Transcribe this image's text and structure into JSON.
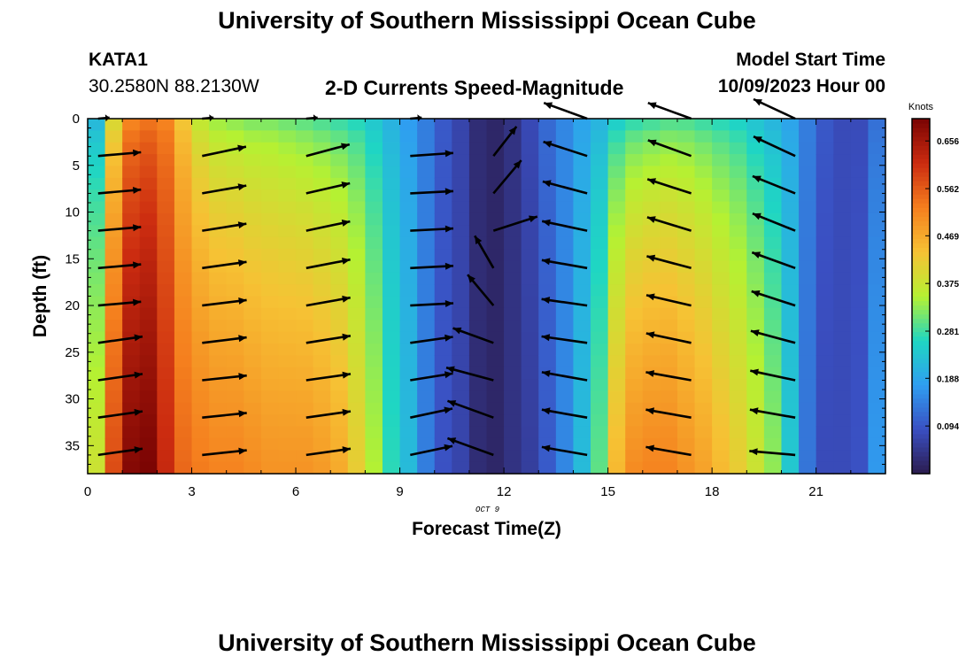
{
  "header": {
    "title": "University of Southern Mississippi Ocean Cube",
    "station": "KATA1",
    "coords": "30.2580N  88.2130W",
    "subtitle": "2-D Currents Speed-Magnitude",
    "model_label": "Model Start Time",
    "model_time": "10/09/2023 Hour 00"
  },
  "footer": {
    "title": "University of Southern Mississippi Ocean Cube"
  },
  "colors": {
    "scale": [
      "#2b1b4d",
      "#3a4fc2",
      "#2f9ef0",
      "#1fd6c3",
      "#b5f132",
      "#f6c234",
      "#f57f1e",
      "#cc2c10",
      "#7a0403"
    ],
    "arrow": "#000000"
  },
  "chart_data": {
    "type": "heatmap",
    "xlabel": "Forecast Time(Z)",
    "ylabel": "Depth (ft)",
    "date_label": "OCT 9",
    "colorbar_label": "Knots",
    "xlim": [
      0,
      23
    ],
    "ylim": [
      38,
      0
    ],
    "x_ticks": [
      0,
      3,
      6,
      9,
      12,
      15,
      18,
      21
    ],
    "y_ticks": [
      0,
      5,
      10,
      15,
      20,
      25,
      30,
      35
    ],
    "colorbar_range": [
      0,
      0.7
    ],
    "colorbar_ticks": [
      0.656,
      0.562,
      0.469,
      0.375,
      0.281,
      0.188,
      0.094
    ],
    "colorbar_tick_labels": [
      "0.656",
      "0.562",
      "0.469",
      "0.375",
      "0.281",
      "0.188",
      "0.094"
    ],
    "hours": [
      0.25,
      0.75,
      1.25,
      1.75,
      2.25,
      2.75,
      3.25,
      3.75,
      4.25,
      4.75,
      5.25,
      5.75,
      6.25,
      6.75,
      7.25,
      7.75,
      8.25,
      8.75,
      9.25,
      9.75,
      10.25,
      10.75,
      11.25,
      11.75,
      12.25,
      12.75,
      13.25,
      13.75,
      14.25,
      14.75,
      15.25,
      15.75,
      16.25,
      16.75,
      17.25,
      17.75,
      18.25,
      18.75,
      19.25,
      19.75,
      20.25,
      20.75,
      21.25,
      21.75,
      22.25,
      22.75
    ],
    "surface_speed": [
      0.2,
      0.38,
      0.5,
      0.52,
      0.51,
      0.42,
      0.35,
      0.32,
      0.31,
      0.3,
      0.3,
      0.29,
      0.28,
      0.27,
      0.26,
      0.25,
      0.23,
      0.2,
      0.17,
      0.14,
      0.1,
      0.07,
      0.03,
      0.02,
      0.04,
      0.08,
      0.12,
      0.15,
      0.18,
      0.2,
      0.23,
      0.25,
      0.26,
      0.27,
      0.27,
      0.26,
      0.25,
      0.24,
      0.22,
      0.2,
      0.18,
      0.14,
      0.1,
      0.08,
      0.08,
      0.12
    ],
    "bottom_speed": [
      0.38,
      0.58,
      0.69,
      0.7,
      0.62,
      0.55,
      0.53,
      0.52,
      0.52,
      0.51,
      0.5,
      0.5,
      0.5,
      0.49,
      0.47,
      0.42,
      0.35,
      0.27,
      0.22,
      0.14,
      0.09,
      0.07,
      0.03,
      0.02,
      0.04,
      0.06,
      0.1,
      0.15,
      0.22,
      0.3,
      0.45,
      0.51,
      0.52,
      0.52,
      0.5,
      0.48,
      0.45,
      0.42,
      0.38,
      0.33,
      0.24,
      0.13,
      0.08,
      0.08,
      0.09,
      0.17
    ],
    "vectors": {
      "columns": [
        {
          "hour": 0.3,
          "depths": [
            0,
            4,
            8,
            12,
            16,
            20,
            24,
            28,
            32,
            36
          ],
          "angle_deg": [
            5,
            5,
            5,
            5,
            5,
            5,
            8,
            8,
            8,
            8
          ],
          "length": [
            0.2,
            0.75,
            0.75,
            0.75,
            0.75,
            0.75,
            0.78,
            0.78,
            0.78,
            0.78
          ]
        },
        {
          "hour": 3.3,
          "depths": [
            0,
            4,
            8,
            12,
            16,
            20,
            24,
            28,
            32,
            36
          ],
          "angle_deg": [
            5,
            12,
            10,
            9,
            8,
            7,
            7,
            6,
            6,
            6
          ],
          "length": [
            0.2,
            0.78,
            0.78,
            0.78,
            0.78,
            0.78,
            0.78,
            0.78,
            0.78,
            0.78
          ]
        },
        {
          "hour": 6.3,
          "depths": [
            0,
            4,
            8,
            12,
            16,
            20,
            24,
            28,
            32,
            36
          ],
          "angle_deg": [
            5,
            15,
            13,
            12,
            11,
            10,
            9,
            8,
            8,
            8
          ],
          "length": [
            0.2,
            0.78,
            0.78,
            0.78,
            0.78,
            0.78,
            0.78,
            0.78,
            0.78,
            0.78
          ]
        },
        {
          "hour": 9.3,
          "depths": [
            0,
            4,
            8,
            12,
            16,
            20,
            24,
            28,
            32,
            36
          ],
          "angle_deg": [
            5,
            4,
            3,
            3,
            3,
            3,
            8,
            9,
            12,
            12
          ],
          "length": [
            0.2,
            0.75,
            0.75,
            0.75,
            0.75,
            0.75,
            0.75,
            0.75,
            0.75,
            0.75
          ]
        },
        {
          "hour": 11.7,
          "depths": [
            4,
            8,
            12,
            16,
            20,
            24,
            28,
            32,
            36
          ],
          "angle_deg": [
            52,
            50,
            18,
            120,
            130,
            160,
            165,
            160,
            160
          ],
          "length": [
            0.65,
            0.75,
            0.8,
            0.65,
            0.7,
            0.75,
            0.85,
            0.85,
            0.85
          ]
        },
        {
          "hour": 14.4,
          "depths": [
            0,
            4,
            8,
            12,
            16,
            20,
            24,
            28,
            32,
            36
          ],
          "angle_deg": [
            160,
            162,
            165,
            168,
            170,
            172,
            172,
            170,
            170,
            170
          ],
          "length": [
            0.8,
            0.8,
            0.8,
            0.8,
            0.8,
            0.8,
            0.8,
            0.8,
            0.8,
            0.8
          ]
        },
        {
          "hour": 17.4,
          "depths": [
            0,
            4,
            8,
            12,
            16,
            20,
            24,
            28,
            32,
            36
          ],
          "angle_deg": [
            160,
            160,
            162,
            163,
            165,
            167,
            168,
            170,
            170,
            170
          ],
          "length": [
            0.8,
            0.8,
            0.8,
            0.8,
            0.8,
            0.8,
            0.8,
            0.8,
            0.8,
            0.8
          ]
        },
        {
          "hour": 20.4,
          "depths": [
            0,
            4,
            8,
            12,
            16,
            20,
            24,
            28,
            32,
            36
          ],
          "angle_deg": [
            155,
            155,
            158,
            158,
            160,
            162,
            165,
            168,
            170,
            175
          ],
          "length": [
            0.8,
            0.8,
            0.8,
            0.8,
            0.8,
            0.8,
            0.8,
            0.8,
            0.8,
            0.8
          ]
        }
      ]
    }
  }
}
